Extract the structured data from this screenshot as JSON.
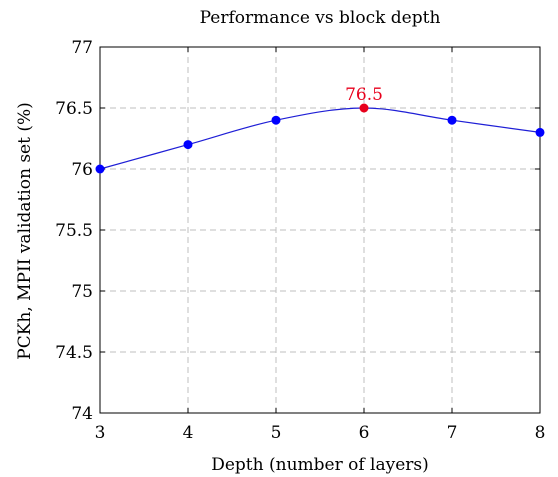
{
  "chart_data": {
    "type": "line",
    "title": "Performance vs block depth",
    "xlabel": "Depth (number of layers)",
    "ylabel": "PCKh, MPII validation set (%)",
    "x": [
      3,
      4,
      5,
      6,
      7,
      8
    ],
    "series": [
      {
        "values": [
          76.0,
          76.2,
          76.4,
          76.5,
          76.4,
          76.3
        ]
      }
    ],
    "xlim": [
      3,
      8
    ],
    "ylim": [
      74,
      77
    ],
    "xticks": [
      "3",
      "4",
      "5",
      "6",
      "7",
      "8"
    ],
    "yticks": [
      "74",
      "74.5",
      "75",
      "75.5",
      "76",
      "76.5",
      "77"
    ],
    "grid": true,
    "highlight": {
      "x": 6,
      "y": 76.5,
      "label": "76.5"
    },
    "colors": {
      "line": "#1f1fd6",
      "marker": "#0000ff",
      "highlight": "#e8001c",
      "grid": "#bfbfbf"
    }
  }
}
